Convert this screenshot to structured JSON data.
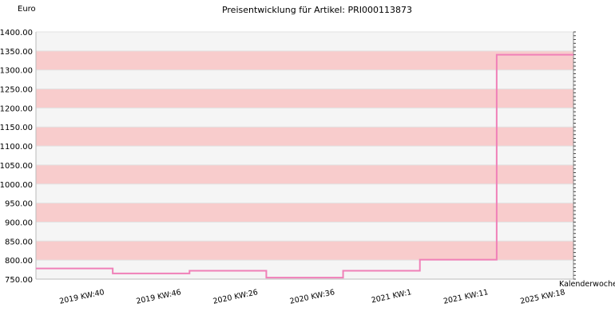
{
  "chart_data": {
    "type": "line",
    "title": "Preisentwicklung für Artikel: PRI000113873",
    "ylabel": "Euro",
    "xlabel": "Kalenderwoche",
    "ylim": [
      750,
      1400
    ],
    "yticks": [
      750,
      800,
      850,
      900,
      950,
      1000,
      1050,
      1100,
      1150,
      1200,
      1250,
      1300,
      1350,
      1400
    ],
    "ytick_labels": [
      "750.00",
      "800.00",
      "850.00",
      "900.00",
      "950.00",
      "1000.00",
      "1050.00",
      "1100.00",
      "1150.00",
      "1200.00",
      "1250.00",
      "1300.00",
      "1350.00",
      "1400.00"
    ],
    "categories": [
      "2019 KW:40",
      "2019 KW:46",
      "2020 KW:26",
      "2020 KW:36",
      "2021 KW:1",
      "2021 KW:11",
      "2025 KW:18"
    ],
    "series": [
      {
        "values": [
          778,
          765,
          772,
          754,
          772,
          801,
          1340
        ]
      }
    ],
    "grid": true,
    "band_colors": [
      "#f5f5f5",
      "#f8cccc"
    ],
    "line_color": "#f080b8",
    "step": true
  }
}
